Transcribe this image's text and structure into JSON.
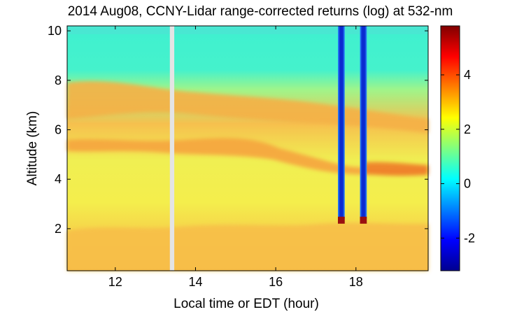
{
  "chart_data": {
    "type": "heatmap",
    "title": "2014 Aug08, CCNY-Lidar range-corrected returns (log) at 532-nm",
    "xlabel": "Local time or EDT (hour)",
    "ylabel": "Altitude (km)",
    "xlim": [
      10.8,
      19.8
    ],
    "ylim": [
      0.3,
      10.2
    ],
    "xticks": [
      12,
      14,
      16,
      18
    ],
    "yticks": [
      2,
      4,
      6,
      8,
      10
    ],
    "grid": false,
    "colormap": "jet",
    "colorbar": {
      "range": [
        -3.2,
        5.8
      ],
      "ticks": [
        -2,
        0,
        2,
        4
      ]
    },
    "colors": {
      "low": "#00008f",
      "mid": "#3ff0d0",
      "high": "#8f0000",
      "background_layer": "#f4f04a",
      "aerosol_layer": "#f6b84a",
      "data_gap": "#e4e4e4"
    },
    "features": {
      "data_gap_hours": [
        13.36,
        13.47
      ],
      "cloud_columns_hours": [
        [
          17.55,
          17.72
        ],
        [
          18.1,
          18.27
        ]
      ],
      "cloud_base_km": 2.4,
      "aerosol_layer_altitudes_km": [
        5.2,
        6.5,
        7.4
      ]
    }
  }
}
